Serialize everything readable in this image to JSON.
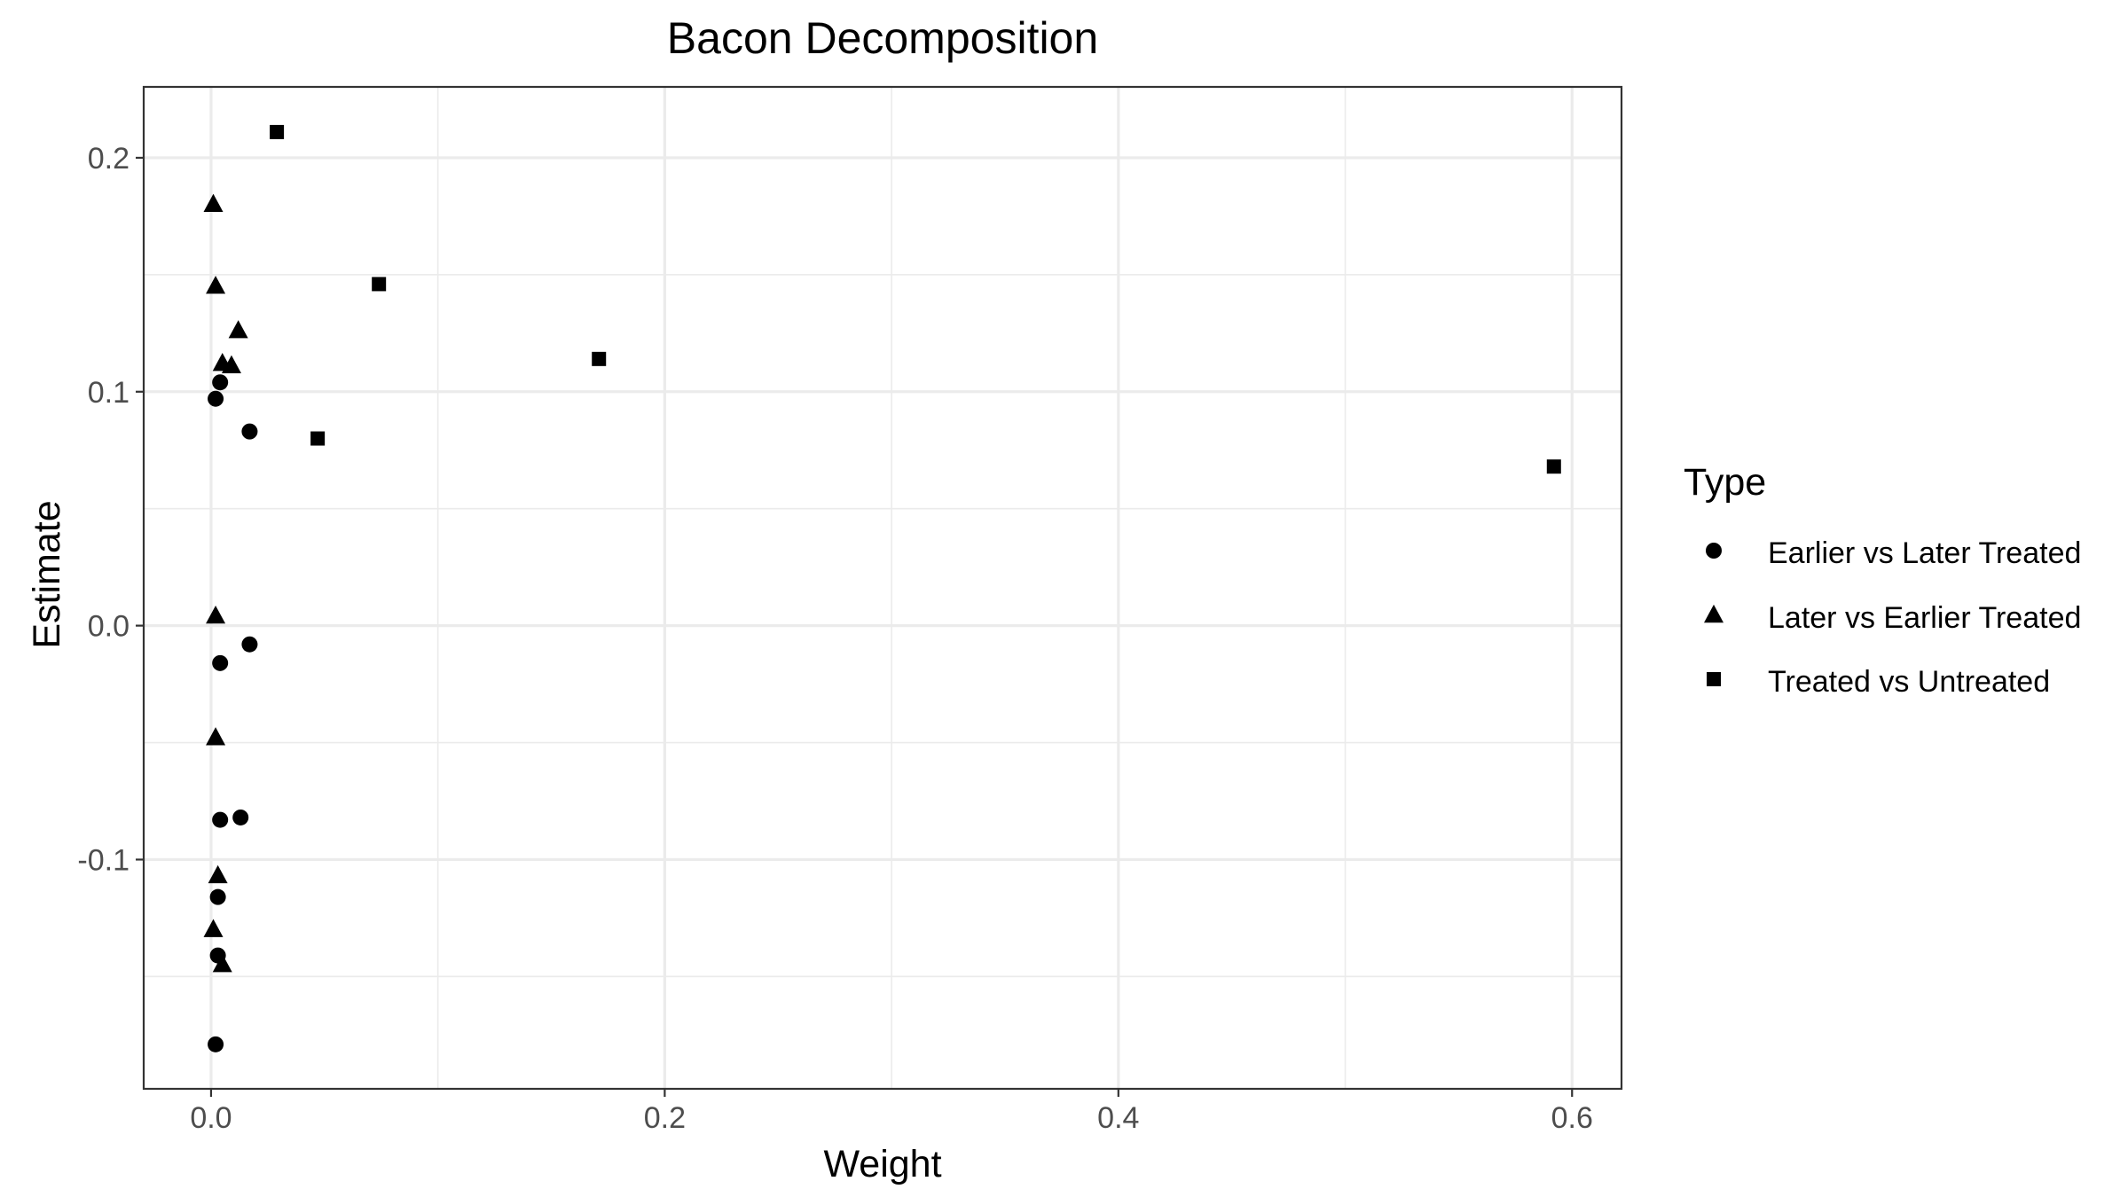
{
  "chart_data": {
    "type": "scatter",
    "title": "Bacon Decomposition",
    "xlabel": "Weight",
    "ylabel": "Estimate",
    "xlim": [
      -0.0297,
      0.6218
    ],
    "ylim": [
      -0.198,
      0.2303
    ],
    "x_ticks": [
      0.0,
      0.2,
      0.4,
      0.6
    ],
    "x_tick_labels": [
      "0.0",
      "0.2",
      "0.4",
      "0.6"
    ],
    "y_ticks": [
      -0.1,
      0.0,
      0.1,
      0.2
    ],
    "y_tick_labels": [
      "-0.1",
      "0.0",
      "0.1",
      "0.2"
    ],
    "x_minor_ticks": [
      0.1,
      0.3,
      0.5
    ],
    "y_minor_ticks": [
      -0.15,
      -0.05,
      0.05,
      0.15
    ],
    "grid": true,
    "legend": {
      "title": "Type",
      "position": "right"
    },
    "series": [
      {
        "name": "Earlier vs Later Treated",
        "shape": "circle",
        "color": "#000000",
        "points": [
          {
            "x": 0.002,
            "y": 0.097
          },
          {
            "x": 0.004,
            "y": 0.104
          },
          {
            "x": 0.017,
            "y": 0.083
          },
          {
            "x": 0.017,
            "y": -0.008
          },
          {
            "x": 0.004,
            "y": -0.016
          },
          {
            "x": 0.004,
            "y": -0.083
          },
          {
            "x": 0.013,
            "y": -0.082
          },
          {
            "x": 0.003,
            "y": -0.116
          },
          {
            "x": 0.003,
            "y": -0.141
          },
          {
            "x": 0.002,
            "y": -0.179
          }
        ]
      },
      {
        "name": "Later vs Earlier Treated",
        "shape": "triangle",
        "color": "#000000",
        "points": [
          {
            "x": 0.001,
            "y": 0.18
          },
          {
            "x": 0.002,
            "y": 0.145
          },
          {
            "x": 0.012,
            "y": 0.126
          },
          {
            "x": 0.005,
            "y": 0.112
          },
          {
            "x": 0.009,
            "y": 0.111
          },
          {
            "x": 0.002,
            "y": 0.004
          },
          {
            "x": 0.002,
            "y": -0.048
          },
          {
            "x": 0.003,
            "y": -0.107
          },
          {
            "x": 0.001,
            "y": -0.13
          },
          {
            "x": 0.005,
            "y": -0.145
          }
        ]
      },
      {
        "name": "Treated vs Untreated",
        "shape": "square",
        "color": "#000000",
        "points": [
          {
            "x": 0.029,
            "y": 0.211
          },
          {
            "x": 0.074,
            "y": 0.146
          },
          {
            "x": 0.171,
            "y": 0.114
          },
          {
            "x": 0.047,
            "y": 0.08
          },
          {
            "x": 0.592,
            "y": 0.068
          }
        ]
      }
    ]
  }
}
